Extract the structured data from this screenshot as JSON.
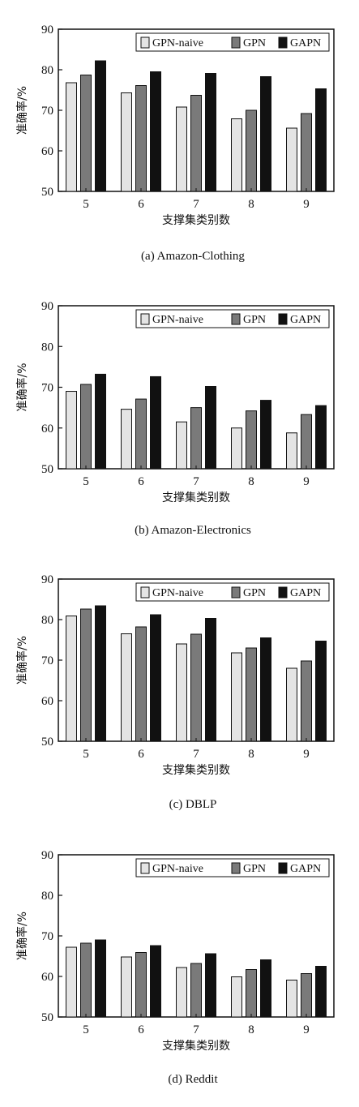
{
  "colors": {
    "gpn_naive": "#e4e4e4",
    "gpn": "#7a7a7a",
    "gapn": "#111111"
  },
  "chart_data": [
    {
      "type": "bar",
      "caption": "(a) Amazon-Clothing",
      "xlabel": "支撑集类别数",
      "ylabel": "准确率/%",
      "categories": [
        "5",
        "6",
        "7",
        "8",
        "9"
      ],
      "ylim": [
        50,
        90
      ],
      "yticks": [
        "50",
        "60",
        "70",
        "80",
        "90"
      ],
      "legend_position": "top-right",
      "series": [
        {
          "name": "GPN-naive",
          "values": [
            76.8,
            74.3,
            70.8,
            67.9,
            65.6
          ]
        },
        {
          "name": "GPN",
          "values": [
            78.7,
            76.1,
            73.7,
            70.0,
            69.2
          ]
        },
        {
          "name": "GAPN",
          "values": [
            82.2,
            79.5,
            79.1,
            78.3,
            75.3
          ]
        }
      ]
    },
    {
      "type": "bar",
      "caption": "(b) Amazon-Electronics",
      "xlabel": "支撑集类别数",
      "ylabel": "准确率/%",
      "categories": [
        "5",
        "6",
        "7",
        "8",
        "9"
      ],
      "ylim": [
        50,
        90
      ],
      "yticks": [
        "50",
        "60",
        "70",
        "80",
        "90"
      ],
      "legend_position": "top-right",
      "series": [
        {
          "name": "GPN-naive",
          "values": [
            69.0,
            64.6,
            61.5,
            60.0,
            58.8
          ]
        },
        {
          "name": "GPN",
          "values": [
            70.7,
            67.1,
            65.0,
            64.2,
            63.3
          ]
        },
        {
          "name": "GAPN",
          "values": [
            73.2,
            72.6,
            70.2,
            66.8,
            65.5
          ]
        }
      ]
    },
    {
      "type": "bar",
      "caption": "(c) DBLP",
      "xlabel": "支撑集类别数",
      "ylabel": "准确率/%",
      "categories": [
        "5",
        "6",
        "7",
        "8",
        "9"
      ],
      "ylim": [
        50,
        90
      ],
      "yticks": [
        "50",
        "60",
        "70",
        "80",
        "90"
      ],
      "legend_position": "top-right",
      "series": [
        {
          "name": "GPN-naive",
          "values": [
            80.9,
            76.5,
            74.0,
            71.8,
            68.0
          ]
        },
        {
          "name": "GPN",
          "values": [
            82.6,
            78.2,
            76.4,
            73.0,
            69.8
          ]
        },
        {
          "name": "GAPN",
          "values": [
            83.4,
            81.2,
            80.3,
            75.5,
            74.7
          ]
        }
      ]
    },
    {
      "type": "bar",
      "caption": "(d) Reddit",
      "xlabel": "支撑集类别数",
      "ylabel": "准确率/%",
      "categories": [
        "5",
        "6",
        "7",
        "8",
        "9"
      ],
      "ylim": [
        50,
        90
      ],
      "yticks": [
        "50",
        "60",
        "70",
        "80",
        "90"
      ],
      "legend_position": "top-right",
      "series": [
        {
          "name": "GPN-naive",
          "values": [
            67.2,
            64.8,
            62.2,
            59.9,
            59.1
          ]
        },
        {
          "name": "GPN",
          "values": [
            68.2,
            65.9,
            63.2,
            61.7,
            60.7
          ]
        },
        {
          "name": "GAPN",
          "values": [
            69.0,
            67.6,
            65.6,
            64.1,
            62.5
          ]
        }
      ]
    }
  ]
}
